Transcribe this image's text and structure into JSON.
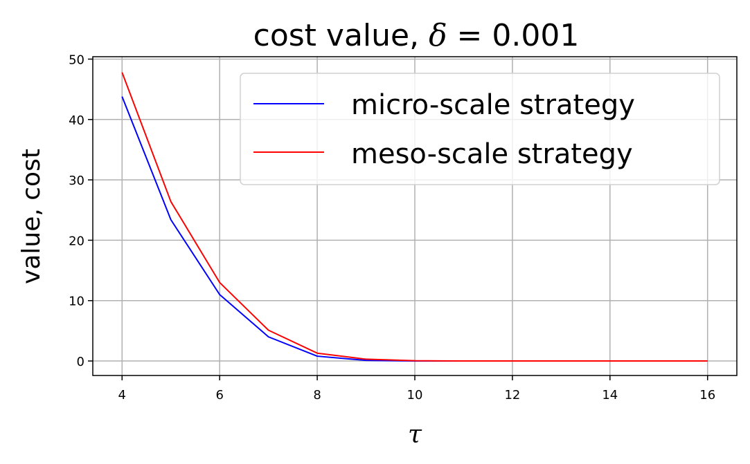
{
  "chart_data": {
    "type": "line",
    "title": {
      "prefix": "cost value, ",
      "symbol": "δ",
      "suffix": " = 0.001"
    },
    "xlabel": "τ",
    "ylabel": "value, cost",
    "x": [
      4,
      5,
      6,
      7,
      8,
      9,
      10,
      11,
      12,
      13,
      14,
      15,
      16
    ],
    "xlim": [
      3.4,
      16.6
    ],
    "ylim": [
      -2.4,
      50.4
    ],
    "xticks": [
      4,
      6,
      8,
      10,
      12,
      14,
      16
    ],
    "yticks": [
      0,
      10,
      20,
      30,
      40,
      50
    ],
    "grid": true,
    "legend_position": "top-right",
    "series": [
      {
        "name": "micro-scale strategy",
        "color": "#0000ff",
        "values": [
          43.8,
          23.4,
          11.0,
          4.0,
          0.8,
          0.1,
          0.0,
          0.0,
          0.0,
          0.0,
          0.0,
          0.0,
          0.0
        ]
      },
      {
        "name": "meso-scale strategy",
        "color": "#ff0000",
        "values": [
          47.8,
          26.4,
          13.0,
          5.1,
          1.3,
          0.3,
          0.05,
          0.0,
          0.0,
          0.0,
          0.0,
          0.0,
          0.0
        ]
      }
    ]
  }
}
